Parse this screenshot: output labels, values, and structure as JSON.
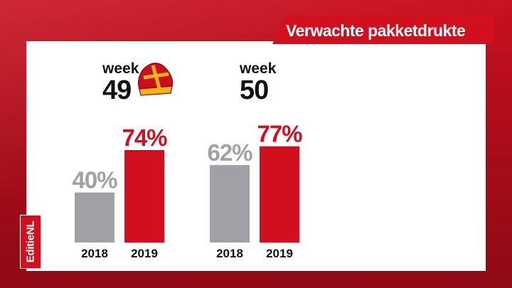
{
  "header": {
    "title": "Verwachte pakketdrukte"
  },
  "brand": {
    "name": "EditieNL"
  },
  "weeks": [
    {
      "word": "week",
      "number": "49"
    },
    {
      "word": "week",
      "number": "50"
    }
  ],
  "colors": {
    "grey": "#a0a1a4",
    "red": "#d10f1f",
    "brand_red": "#d10f1f"
  },
  "icons": {
    "week49": "bishop-mitre-icon"
  },
  "chart_data": {
    "type": "bar",
    "categories": [
      "week 49",
      "week 50"
    ],
    "series": [
      {
        "name": "2018",
        "values": [
          40,
          62
        ]
      },
      {
        "name": "2019",
        "values": [
          74,
          77
        ]
      }
    ],
    "value_labels": [
      [
        "40%",
        "74%"
      ],
      [
        "62%",
        "77%"
      ]
    ],
    "ylim": [
      0,
      100
    ],
    "grid": false,
    "legend": "none"
  }
}
